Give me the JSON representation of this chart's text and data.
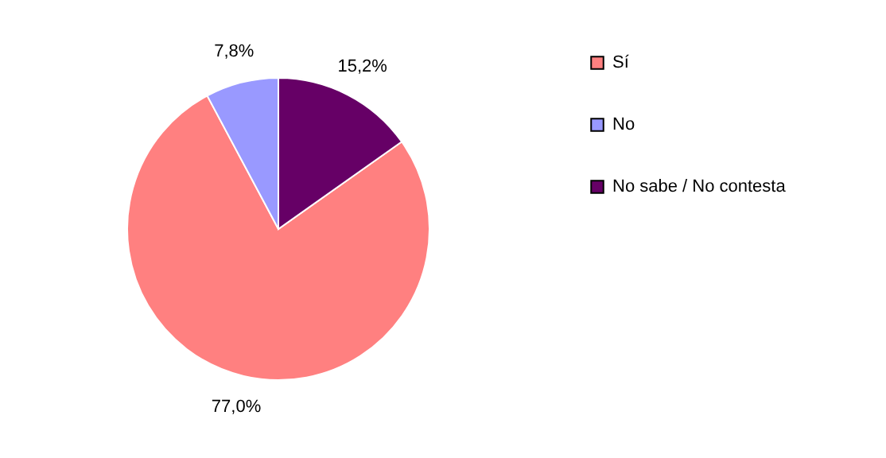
{
  "chart_data": {
    "type": "pie",
    "categories": [
      "Sí",
      "No",
      "No sabe / No contesta"
    ],
    "values": [
      77.0,
      7.8,
      15.2
    ],
    "colors": [
      "#ff8080",
      "#9999ff",
      "#660066"
    ],
    "value_labels": [
      "77,0%",
      "7,8%",
      "15,2%"
    ],
    "legend": "right"
  }
}
